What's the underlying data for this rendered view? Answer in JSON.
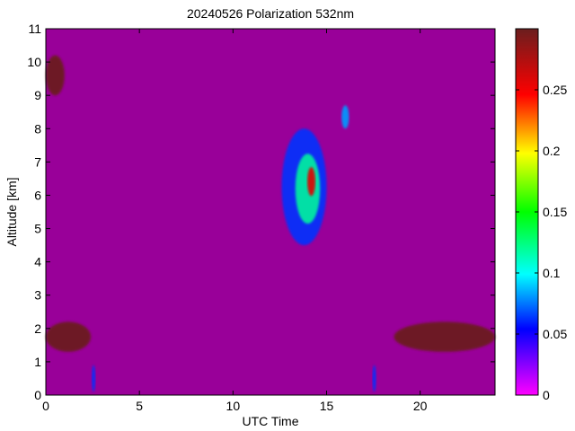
{
  "chart_data": {
    "type": "heatmap",
    "title": "20240526 Polarization 532nm",
    "xlabel": "UTC Time",
    "ylabel": "Altitude [km]",
    "xlim": [
      0,
      24
    ],
    "ylim": [
      0,
      11
    ],
    "x_ticks": [
      0,
      5,
      10,
      15,
      20
    ],
    "y_ticks": [
      0,
      1,
      2,
      3,
      4,
      5,
      6,
      7,
      8,
      9,
      10,
      11
    ],
    "colorbar": {
      "range": [
        0,
        0.3
      ],
      "ticks": [
        0,
        0.05,
        0.1,
        0.15,
        0.2,
        0.25
      ],
      "tick_labels": [
        "0",
        "0.05",
        "0.1",
        "0.15",
        "0.2",
        "0.25"
      ],
      "colormap": "jet-like (magenta-blue-cyan-green-yellow-red-brown)",
      "colors": [
        "#ff00ff",
        "#0000ff",
        "#00ffff",
        "#00ff00",
        "#ffff00",
        "#ff0000",
        "#6b1e1e"
      ]
    },
    "background_value": 0.02,
    "background_color": "#990099",
    "features": [
      {
        "description": "boundary layer",
        "x": [
          0,
          2.4
        ],
        "y": [
          1.3,
          2.2
        ],
        "value": 0.3
      },
      {
        "description": "boundary layer",
        "x": [
          18.6,
          24
        ],
        "y": [
          1.3,
          2.2
        ],
        "value": 0.3
      },
      {
        "description": "cloud top-left",
        "x": [
          0,
          1
        ],
        "y": [
          9,
          10.2
        ],
        "value": 0.3
      },
      {
        "description": "cirrus cloud",
        "x": [
          12.6,
          15
        ],
        "y": [
          4.5,
          8
        ],
        "value": 0.12
      },
      {
        "description": "high cloud",
        "x": [
          15.8,
          16.2
        ],
        "y": [
          8,
          8.7
        ],
        "value": 0.08
      },
      {
        "description": "near-surface spikes",
        "x": [
          2.5,
          2.6
        ],
        "y": [
          0.1,
          0.9
        ],
        "value": 0.06
      },
      {
        "description": "near-surface spikes",
        "x": [
          17.5,
          17.6
        ],
        "y": [
          0.1,
          0.9
        ],
        "value": 0.06
      }
    ]
  }
}
